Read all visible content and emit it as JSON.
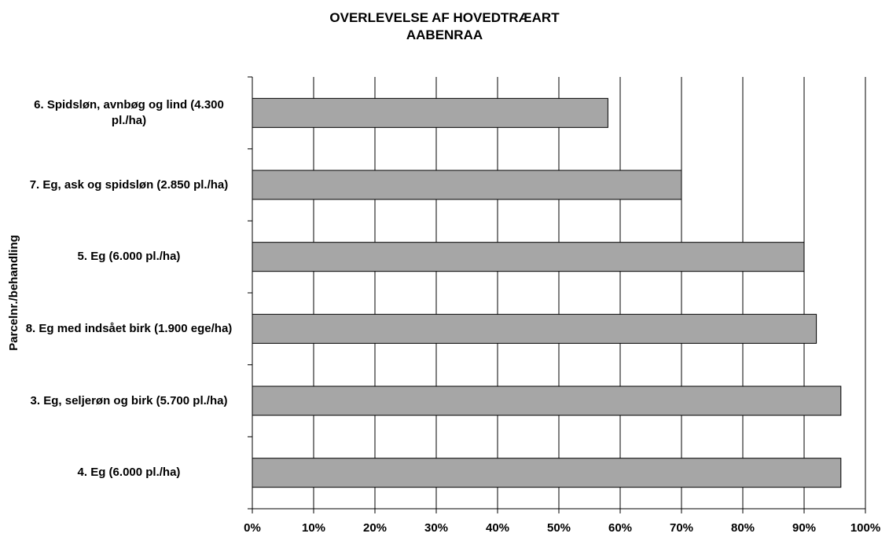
{
  "chart_data": {
    "type": "bar",
    "orientation": "horizontal",
    "title": "OVERLEVELSE AF HOVEDTRÆART\nAABENRAA",
    "y_label": "Parcelnr./behandling",
    "categories": [
      "6. Spidsløn, avnbøg og lind (4.300 pl./ha)",
      "7. Eg, ask og spidsløn (2.850 pl./ha)",
      "5. Eg (6.000 pl./ha)",
      "8. Eg med indsået birk (1.900 ege/ha)",
      "3. Eg, seljerøn og birk (5.700 pl./ha)",
      "4. Eg (6.000 pl./ha)"
    ],
    "values": [
      58,
      70,
      90,
      92,
      96,
      96
    ],
    "color": "#a6a6a6",
    "xlim": [
      0,
      100
    ],
    "xticks": [
      {
        "value": 0,
        "label": "0%"
      },
      {
        "value": 10,
        "label": "10%"
      },
      {
        "value": 20,
        "label": "20%"
      },
      {
        "value": 30,
        "label": "30%"
      },
      {
        "value": 40,
        "label": "40%"
      },
      {
        "value": 50,
        "label": "50%"
      },
      {
        "value": 60,
        "label": "60%"
      },
      {
        "value": 70,
        "label": "70%"
      },
      {
        "value": 80,
        "label": "80%"
      },
      {
        "value": 90,
        "label": "90%"
      },
      {
        "value": 100,
        "label": "100%"
      }
    ],
    "grid": true
  }
}
